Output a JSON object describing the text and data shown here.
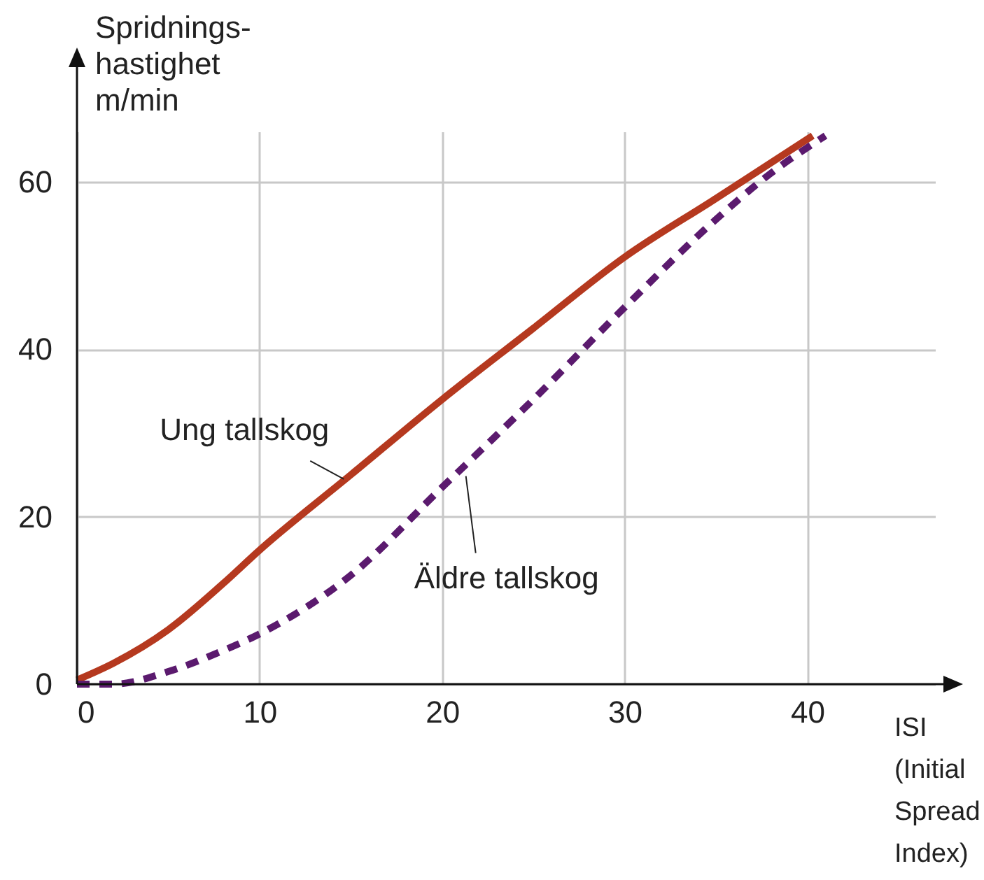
{
  "chart_data": {
    "type": "line",
    "xlabel": "ISI\n(Initial\nSpread\nIndex)",
    "ylabel": "Spridnings-\nhastighet\nm/min",
    "xlim": [
      0,
      47
    ],
    "ylim": [
      0,
      66
    ],
    "xticks": [
      0,
      10,
      20,
      30,
      40
    ],
    "yticks": [
      0,
      20,
      40,
      60
    ],
    "grid": true,
    "marker": "none",
    "series": [
      {
        "name": "Ung tallskog",
        "color": "#b5391f",
        "line_style": "solid",
        "x": [
          0,
          2,
          5,
          8,
          10,
          15,
          20,
          25,
          30,
          35,
          40.3
        ],
        "values": [
          0.5,
          2.5,
          6.5,
          12,
          16,
          25,
          34,
          42.5,
          51,
          58,
          65.5
        ]
      },
      {
        "name": "Äldre tallskog",
        "color": "#5b1a6e",
        "line_style": "dashed",
        "x": [
          0,
          2,
          5,
          8,
          10,
          15,
          20,
          25,
          30,
          35,
          38,
          41
        ],
        "values": [
          0,
          0,
          1.5,
          4,
          6,
          13,
          23.5,
          34,
          45,
          55.5,
          61,
          65.5
        ]
      }
    ]
  }
}
